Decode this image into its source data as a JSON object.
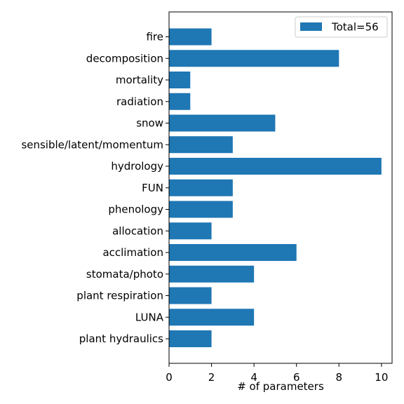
{
  "chart_data": {
    "type": "bar",
    "orientation": "horizontal",
    "categories": [
      "fire",
      "decomposition",
      "mortality",
      "radiation",
      "snow",
      "sensible/latent/momentum",
      "hydrology",
      "FUN",
      "phenology",
      "allocation",
      "acclimation",
      "stomata/photo",
      "plant respiration",
      "LUNA",
      "plant hydraulics"
    ],
    "values": [
      2,
      8,
      1,
      1,
      5,
      3,
      10,
      3,
      3,
      2,
      6,
      4,
      2,
      4,
      2
    ],
    "xlabel": "# of parameters",
    "ylabel": "",
    "xlim": [
      0,
      10.5
    ],
    "xticks": [
      0,
      2,
      4,
      6,
      8,
      10
    ],
    "series_name": "Total=56",
    "legend_position": "upper-right",
    "bar_color": "#1f77b4",
    "grid": false
  }
}
